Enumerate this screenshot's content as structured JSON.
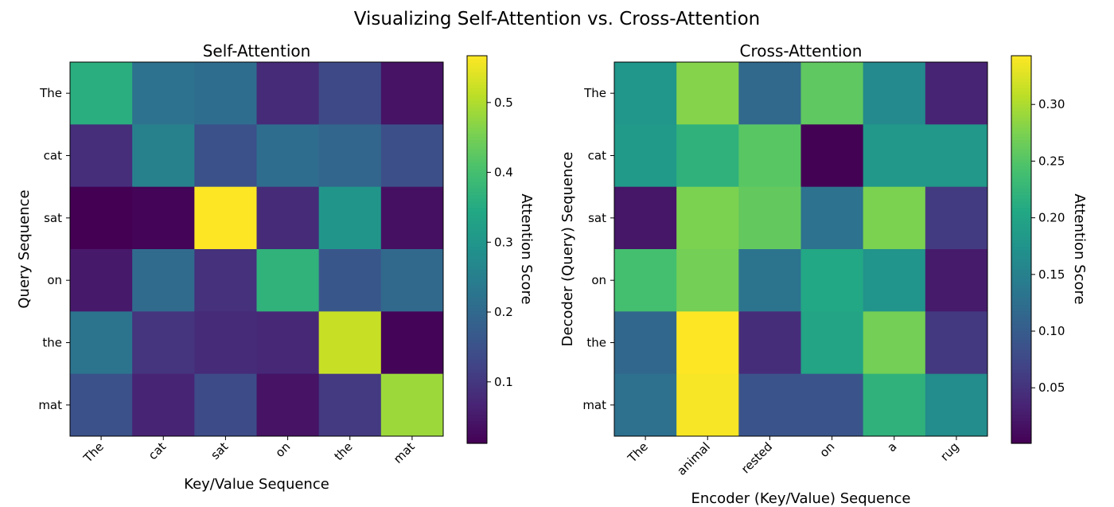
{
  "suptitle": "Visualizing Self-Attention vs. Cross-Attention",
  "chart_data": [
    {
      "type": "heatmap",
      "title": "Self-Attention",
      "xlabel": "Key/Value Sequence",
      "ylabel": "Query Sequence",
      "x_tick_labels": [
        "The",
        "cat",
        "sat",
        "on",
        "the",
        "mat"
      ],
      "y_tick_labels": [
        "The",
        "cat",
        "sat",
        "on",
        "the",
        "mat"
      ],
      "values": [
        [
          0.36,
          0.22,
          0.21,
          0.08,
          0.135,
          0.04
        ],
        [
          0.085,
          0.255,
          0.15,
          0.21,
          0.195,
          0.145
        ],
        [
          0.012,
          0.017,
          0.567,
          0.08,
          0.3,
          0.035
        ],
        [
          0.05,
          0.205,
          0.09,
          0.37,
          0.16,
          0.2
        ],
        [
          0.225,
          0.095,
          0.08,
          0.075,
          0.52,
          0.018
        ],
        [
          0.15,
          0.067,
          0.14,
          0.04,
          0.105,
          0.485
        ]
      ],
      "colormap": "viridis",
      "colorbar": {
        "label": "Attention Score",
        "range": [
          0.012,
          0.567
        ],
        "ticks": [
          0.1,
          0.2,
          0.3,
          0.4,
          0.5
        ],
        "tick_labels": [
          "0.1",
          "0.2",
          "0.3",
          "0.4",
          "0.5"
        ]
      }
    },
    {
      "type": "heatmap",
      "title": "Cross-Attention",
      "xlabel": "Encoder (Key/Value) Sequence",
      "ylabel": "Decoder (Query) Sequence",
      "x_tick_labels": [
        "The",
        "animal",
        "rested",
        "on",
        "a",
        "rug"
      ],
      "y_tick_labels": [
        "The",
        "cat",
        "sat",
        "on",
        "the",
        "mat"
      ],
      "values": [
        [
          0.18,
          0.28,
          0.117,
          0.258,
          0.162,
          0.035
        ],
        [
          0.186,
          0.22,
          0.254,
          0.002,
          0.183,
          0.183
        ],
        [
          0.022,
          0.275,
          0.26,
          0.13,
          0.275,
          0.06
        ],
        [
          0.24,
          0.27,
          0.132,
          0.206,
          0.176,
          0.026
        ],
        [
          0.115,
          0.343,
          0.045,
          0.2,
          0.27,
          0.058
        ],
        [
          0.128,
          0.34,
          0.09,
          0.09,
          0.22,
          0.165
        ]
      ],
      "colormap": "viridis",
      "colorbar": {
        "label": "Attention Score",
        "range": [
          0.001,
          0.343
        ],
        "ticks": [
          0.05,
          0.1,
          0.15,
          0.2,
          0.25,
          0.3
        ],
        "tick_labels": [
          "0.05",
          "0.10",
          "0.15",
          "0.20",
          "0.25",
          "0.30"
        ]
      }
    }
  ]
}
